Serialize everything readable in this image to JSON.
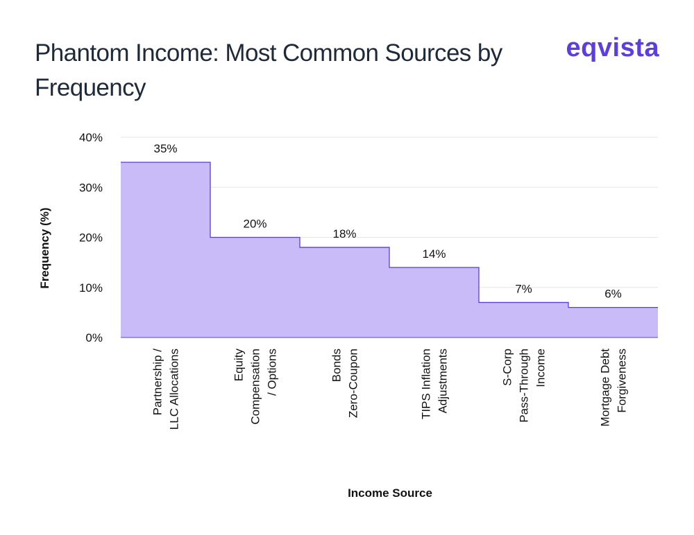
{
  "brand": {
    "logo_text": "eqvista",
    "logo_color": "#5b3de0"
  },
  "chart_data": {
    "type": "area",
    "style": "step",
    "title": "Phantom Income: Most Common Sources by Frequency",
    "xlabel": "Income Source",
    "ylabel": "Frequency (%)",
    "ylim": [
      0,
      40
    ],
    "yticks": [
      "0%",
      "10%",
      "20%",
      "30%",
      "40%"
    ],
    "yticks_values": [
      0,
      10,
      20,
      30,
      40
    ],
    "grid": true,
    "legend": "none",
    "fill_color": "#c9bbf7",
    "line_color": "#5a3fd6",
    "categories": [
      [
        "Partnership /",
        "LLC Allocations"
      ],
      [
        "Equity",
        "Compensation",
        "/ Options"
      ],
      [
        "Bonds",
        "Zero-Coupon"
      ],
      [
        "TIPS Inflation",
        "Adjustments"
      ],
      [
        "S-Corp",
        "Pass-Through",
        "Income"
      ],
      [
        "Mortgage Debt",
        "Forgiveness"
      ]
    ],
    "values": [
      35,
      20,
      18,
      14,
      7,
      6
    ],
    "data_labels": [
      "35%",
      "20%",
      "18%",
      "14%",
      "7%",
      "6%"
    ]
  }
}
